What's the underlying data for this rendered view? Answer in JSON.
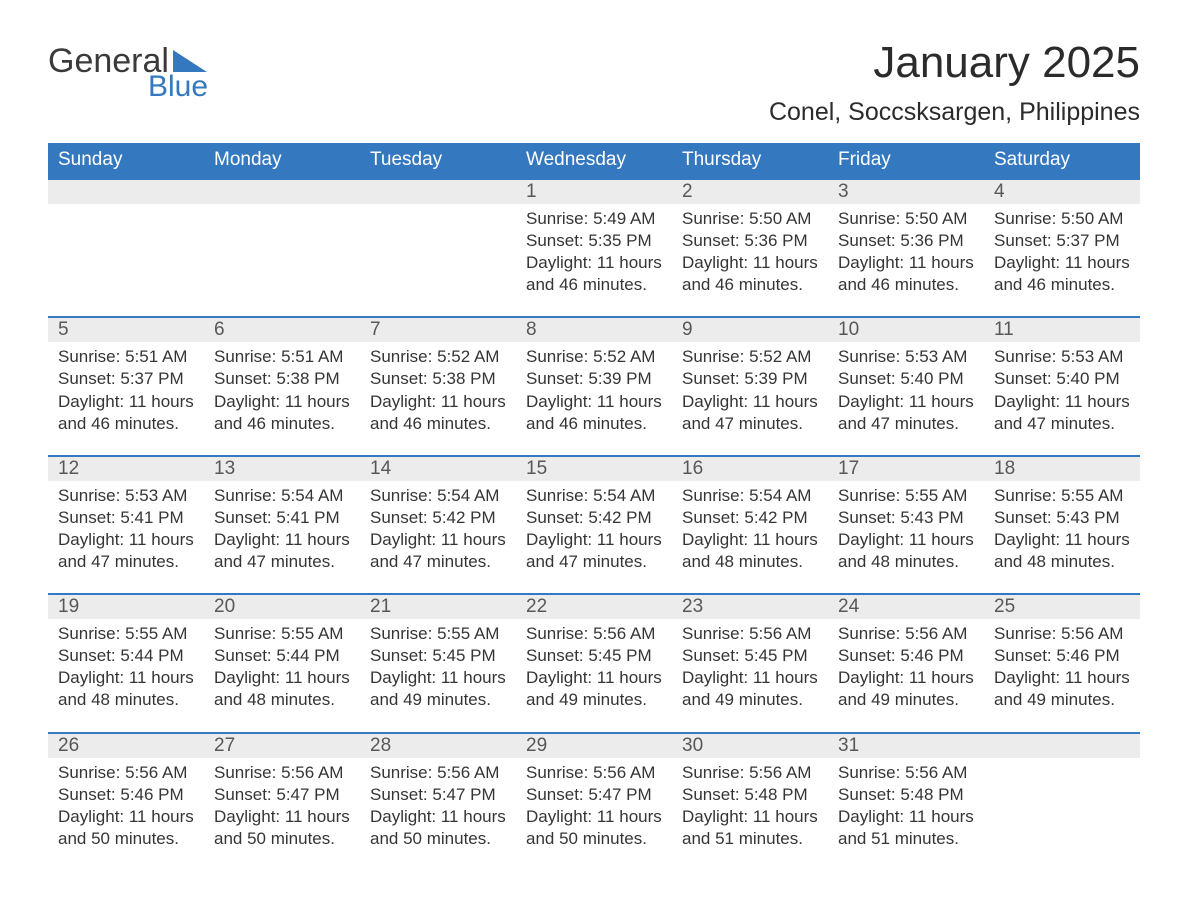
{
  "logo": {
    "word1": "General",
    "word2": "Blue"
  },
  "title": {
    "month": "January 2025",
    "location": "Conel, Soccsksargen, Philippines"
  },
  "columns": [
    "Sunday",
    "Monday",
    "Tuesday",
    "Wednesday",
    "Thursday",
    "Friday",
    "Saturday"
  ],
  "label_sunrise": "Sunrise: ",
  "label_sunset": "Sunset: ",
  "label_daylight_a": "Daylight: ",
  "label_daylight_b": "and ",
  "colors": {
    "blue": "#3478bf",
    "row_bg": "#ececec",
    "text": "#353535",
    "date_text": "#585858",
    "background": "#ffffff"
  },
  "weeks": [
    [
      null,
      null,
      null,
      {
        "d": "1",
        "sr": "5:49 AM",
        "ss": "5:35 PM",
        "h": "11 hours",
        "m": "46 minutes."
      },
      {
        "d": "2",
        "sr": "5:50 AM",
        "ss": "5:36 PM",
        "h": "11 hours",
        "m": "46 minutes."
      },
      {
        "d": "3",
        "sr": "5:50 AM",
        "ss": "5:36 PM",
        "h": "11 hours",
        "m": "46 minutes."
      },
      {
        "d": "4",
        "sr": "5:50 AM",
        "ss": "5:37 PM",
        "h": "11 hours",
        "m": "46 minutes."
      }
    ],
    [
      {
        "d": "5",
        "sr": "5:51 AM",
        "ss": "5:37 PM",
        "h": "11 hours",
        "m": "46 minutes."
      },
      {
        "d": "6",
        "sr": "5:51 AM",
        "ss": "5:38 PM",
        "h": "11 hours",
        "m": "46 minutes."
      },
      {
        "d": "7",
        "sr": "5:52 AM",
        "ss": "5:38 PM",
        "h": "11 hours",
        "m": "46 minutes."
      },
      {
        "d": "8",
        "sr": "5:52 AM",
        "ss": "5:39 PM",
        "h": "11 hours",
        "m": "46 minutes."
      },
      {
        "d": "9",
        "sr": "5:52 AM",
        "ss": "5:39 PM",
        "h": "11 hours",
        "m": "47 minutes."
      },
      {
        "d": "10",
        "sr": "5:53 AM",
        "ss": "5:40 PM",
        "h": "11 hours",
        "m": "47 minutes."
      },
      {
        "d": "11",
        "sr": "5:53 AM",
        "ss": "5:40 PM",
        "h": "11 hours",
        "m": "47 minutes."
      }
    ],
    [
      {
        "d": "12",
        "sr": "5:53 AM",
        "ss": "5:41 PM",
        "h": "11 hours",
        "m": "47 minutes."
      },
      {
        "d": "13",
        "sr": "5:54 AM",
        "ss": "5:41 PM",
        "h": "11 hours",
        "m": "47 minutes."
      },
      {
        "d": "14",
        "sr": "5:54 AM",
        "ss": "5:42 PM",
        "h": "11 hours",
        "m": "47 minutes."
      },
      {
        "d": "15",
        "sr": "5:54 AM",
        "ss": "5:42 PM",
        "h": "11 hours",
        "m": "47 minutes."
      },
      {
        "d": "16",
        "sr": "5:54 AM",
        "ss": "5:42 PM",
        "h": "11 hours",
        "m": "48 minutes."
      },
      {
        "d": "17",
        "sr": "5:55 AM",
        "ss": "5:43 PM",
        "h": "11 hours",
        "m": "48 minutes."
      },
      {
        "d": "18",
        "sr": "5:55 AM",
        "ss": "5:43 PM",
        "h": "11 hours",
        "m": "48 minutes."
      }
    ],
    [
      {
        "d": "19",
        "sr": "5:55 AM",
        "ss": "5:44 PM",
        "h": "11 hours",
        "m": "48 minutes."
      },
      {
        "d": "20",
        "sr": "5:55 AM",
        "ss": "5:44 PM",
        "h": "11 hours",
        "m": "48 minutes."
      },
      {
        "d": "21",
        "sr": "5:55 AM",
        "ss": "5:45 PM",
        "h": "11 hours",
        "m": "49 minutes."
      },
      {
        "d": "22",
        "sr": "5:56 AM",
        "ss": "5:45 PM",
        "h": "11 hours",
        "m": "49 minutes."
      },
      {
        "d": "23",
        "sr": "5:56 AM",
        "ss": "5:45 PM",
        "h": "11 hours",
        "m": "49 minutes."
      },
      {
        "d": "24",
        "sr": "5:56 AM",
        "ss": "5:46 PM",
        "h": "11 hours",
        "m": "49 minutes."
      },
      {
        "d": "25",
        "sr": "5:56 AM",
        "ss": "5:46 PM",
        "h": "11 hours",
        "m": "49 minutes."
      }
    ],
    [
      {
        "d": "26",
        "sr": "5:56 AM",
        "ss": "5:46 PM",
        "h": "11 hours",
        "m": "50 minutes."
      },
      {
        "d": "27",
        "sr": "5:56 AM",
        "ss": "5:47 PM",
        "h": "11 hours",
        "m": "50 minutes."
      },
      {
        "d": "28",
        "sr": "5:56 AM",
        "ss": "5:47 PM",
        "h": "11 hours",
        "m": "50 minutes."
      },
      {
        "d": "29",
        "sr": "5:56 AM",
        "ss": "5:47 PM",
        "h": "11 hours",
        "m": "50 minutes."
      },
      {
        "d": "30",
        "sr": "5:56 AM",
        "ss": "5:48 PM",
        "h": "11 hours",
        "m": "51 minutes."
      },
      {
        "d": "31",
        "sr": "5:56 AM",
        "ss": "5:48 PM",
        "h": "11 hours",
        "m": "51 minutes."
      },
      null
    ]
  ]
}
